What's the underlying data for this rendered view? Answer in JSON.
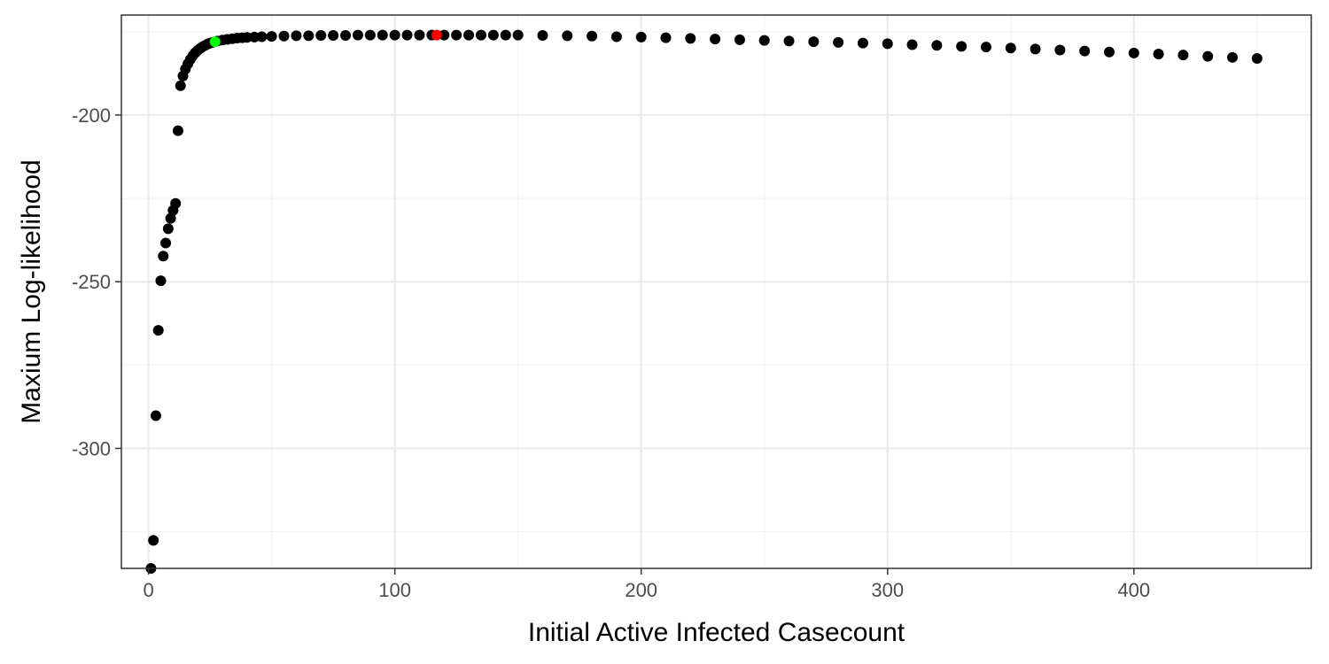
{
  "chart_data": {
    "type": "scatter",
    "title": "",
    "xlabel": "Initial Active Infected Casecount",
    "ylabel": "Maxium Log-likelihood",
    "xlim": [
      -11,
      472
    ],
    "ylim": [
      -336,
      -170
    ],
    "x_ticks": [
      0,
      100,
      200,
      300,
      400
    ],
    "y_ticks": [
      -200,
      -250,
      -300
    ],
    "x_tick_labels": [
      "0",
      "100",
      "200",
      "300",
      "400"
    ],
    "y_tick_labels": [
      "-200",
      "-250",
      "-300"
    ],
    "grid": true,
    "legend": "none",
    "colors": {
      "points": "#000000",
      "highlight_red": "#ff0000",
      "highlight_green": "#00ff00",
      "grid_major": "#ebebeb",
      "grid_minor": "#f4f4f4",
      "panel_border": "#333333"
    },
    "series": [
      {
        "points": [
          [
            1,
            -336
          ],
          [
            2,
            -327.6
          ],
          [
            3,
            -290.2
          ],
          [
            4,
            -264.6
          ],
          [
            5,
            -249.7
          ],
          [
            6,
            -242.3
          ],
          [
            7,
            -238.4
          ],
          [
            8,
            -234.1
          ],
          [
            9,
            -231.0
          ],
          [
            10,
            -228.6
          ],
          [
            11,
            -226.5
          ],
          [
            12,
            -204.7
          ],
          [
            13,
            -191.2
          ],
          [
            14,
            -188.3
          ],
          [
            15,
            -186.2
          ],
          [
            16,
            -184.6
          ],
          [
            17,
            -183.3
          ],
          [
            18,
            -182.2
          ],
          [
            19,
            -181.3
          ],
          [
            20,
            -180.6
          ],
          [
            21,
            -180.0
          ],
          [
            22,
            -179.5
          ],
          [
            23,
            -179.1
          ],
          [
            24,
            -178.7
          ],
          [
            25,
            -178.4
          ],
          [
            26,
            -178.2
          ],
          [
            28,
            -177.8
          ],
          [
            30,
            -177.5
          ],
          [
            32,
            -177.3
          ],
          [
            34,
            -177.1
          ],
          [
            36,
            -176.9
          ],
          [
            38,
            -176.8
          ],
          [
            40,
            -176.7
          ],
          [
            43,
            -176.6
          ],
          [
            46,
            -176.5
          ],
          [
            50,
            -176.4
          ],
          [
            55,
            -176.3
          ],
          [
            60,
            -176.2
          ],
          [
            65,
            -176.2
          ],
          [
            70,
            -176.1
          ],
          [
            75,
            -176.1
          ],
          [
            80,
            -176.1
          ],
          [
            85,
            -176.0
          ],
          [
            90,
            -176.0
          ],
          [
            95,
            -176.0
          ],
          [
            100,
            -176.0
          ],
          [
            105,
            -176.0
          ],
          [
            110,
            -176.0
          ],
          [
            115,
            -176.0
          ],
          [
            120,
            -176.0
          ],
          [
            125,
            -176.0
          ],
          [
            130,
            -176.0
          ],
          [
            135,
            -176.0
          ],
          [
            140,
            -176.0
          ],
          [
            145,
            -176.0
          ],
          [
            150,
            -176.0
          ],
          [
            160,
            -176.1
          ],
          [
            170,
            -176.2
          ],
          [
            180,
            -176.3
          ],
          [
            190,
            -176.5
          ],
          [
            200,
            -176.6
          ],
          [
            210,
            -176.8
          ],
          [
            220,
            -177.0
          ],
          [
            230,
            -177.2
          ],
          [
            240,
            -177.4
          ],
          [
            250,
            -177.6
          ],
          [
            260,
            -177.8
          ],
          [
            270,
            -178.0
          ],
          [
            280,
            -178.2
          ],
          [
            290,
            -178.4
          ],
          [
            300,
            -178.6
          ],
          [
            310,
            -178.9
          ],
          [
            320,
            -179.1
          ],
          [
            330,
            -179.4
          ],
          [
            340,
            -179.6
          ],
          [
            350,
            -179.9
          ],
          [
            360,
            -180.2
          ],
          [
            370,
            -180.5
          ],
          [
            380,
            -180.8
          ],
          [
            390,
            -181.1
          ],
          [
            400,
            -181.4
          ],
          [
            410,
            -181.7
          ],
          [
            420,
            -182.0
          ],
          [
            430,
            -182.4
          ],
          [
            440,
            -182.7
          ],
          [
            450,
            -183.0
          ]
        ]
      }
    ],
    "highlights": [
      {
        "color": "red",
        "x": 117,
        "y": -176.0
      },
      {
        "color": "green",
        "x": 27,
        "y": -178.0
      }
    ]
  }
}
